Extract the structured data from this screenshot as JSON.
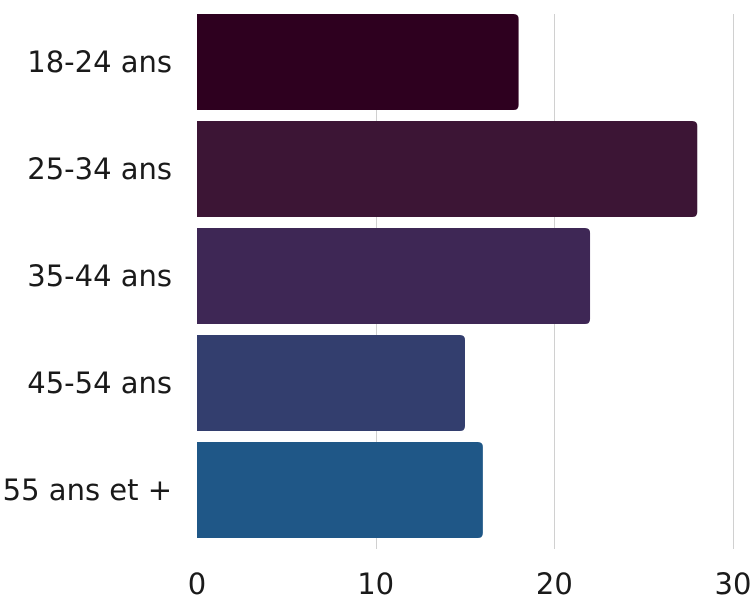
{
  "chart_data": {
    "type": "bar",
    "orientation": "horizontal",
    "categories": [
      "18-24 ans",
      "25-34 ans",
      "35-44 ans",
      "45-54 ans",
      "55 ans et +"
    ],
    "values": [
      18,
      28,
      22,
      15,
      16
    ],
    "colors": [
      "#2e001f",
      "#3c1535",
      "#3e2755",
      "#333e6e",
      "#1f5787"
    ],
    "xlim": [
      0,
      30
    ],
    "xticks": [
      0,
      10,
      20,
      30
    ],
    "grid": true,
    "title": "",
    "xlabel": "",
    "ylabel": ""
  }
}
